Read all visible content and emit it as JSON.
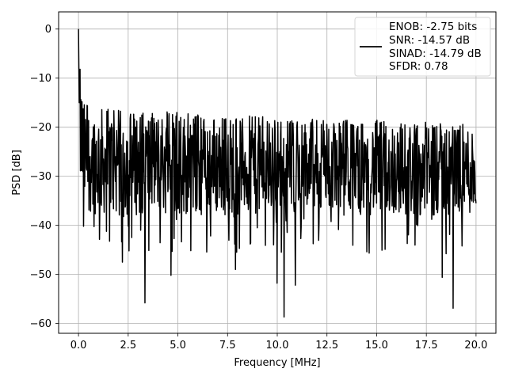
{
  "chart_data": {
    "type": "line",
    "title": "",
    "xlabel": "Frequency [MHz]",
    "ylabel": "PSD [dB]",
    "xlim": [
      -1.0,
      21.0
    ],
    "ylim": [
      -62,
      3.5
    ],
    "xticks": [
      0.0,
      2.5,
      5.0,
      7.5,
      10.0,
      12.5,
      15.0,
      17.5,
      20.0
    ],
    "xtick_labels": [
      "0.0",
      "2.5",
      "5.0",
      "7.5",
      "10.0",
      "12.5",
      "15.0",
      "17.5",
      "20.0"
    ],
    "yticks": [
      0,
      -10,
      -20,
      -30,
      -40,
      -50,
      -60
    ],
    "ytick_labels": [
      "0",
      "−10",
      "−20",
      "−30",
      "−40",
      "−50",
      "−60"
    ],
    "grid": true,
    "line_color": "#000000",
    "legend": {
      "placement": "upper right",
      "entries": [
        "ENOB: -2.75 bits",
        "SNR: -14.57 dB",
        "SINAD: -14.79 dB",
        "SFDR: 0.78"
      ]
    },
    "series": [
      {
        "x_range": [
          0.0,
          20.0
        ],
        "points": 1024,
        "envelope_x": [
          0.0,
          0.02,
          0.1,
          0.3,
          1.0,
          2.5,
          5.0,
          7.5,
          10.0,
          12.5,
          15.0,
          17.5,
          20.0
        ],
        "envelope_peak": [
          0.0,
          -3,
          -10,
          -15,
          -16,
          -16.5,
          -17,
          -17.5,
          -18,
          -18.5,
          -18.5,
          -19,
          -19.5
        ],
        "envelope_floor": [
          -24,
          -28,
          -33,
          -37,
          -38,
          -38,
          -38,
          -38,
          -38,
          -38,
          -38,
          -38,
          -38
        ],
        "notable_minima": [
          {
            "x": 3.35,
            "y": -55.8
          },
          {
            "x": 10.35,
            "y": -58.7
          },
          {
            "x": 18.85,
            "y": -56.9
          },
          {
            "x": 10.0,
            "y": -51.8
          },
          {
            "x": 10.9,
            "y": -52.2
          },
          {
            "x": 18.3,
            "y": -50.6
          },
          {
            "x": 4.65,
            "y": -50.2
          },
          {
            "x": 2.2,
            "y": -47.5
          },
          {
            "x": 7.9,
            "y": -49.0
          },
          {
            "x": 0.25,
            "y": -40.2
          },
          {
            "x": 20.0,
            "y": -35.5
          }
        ]
      }
    ]
  }
}
